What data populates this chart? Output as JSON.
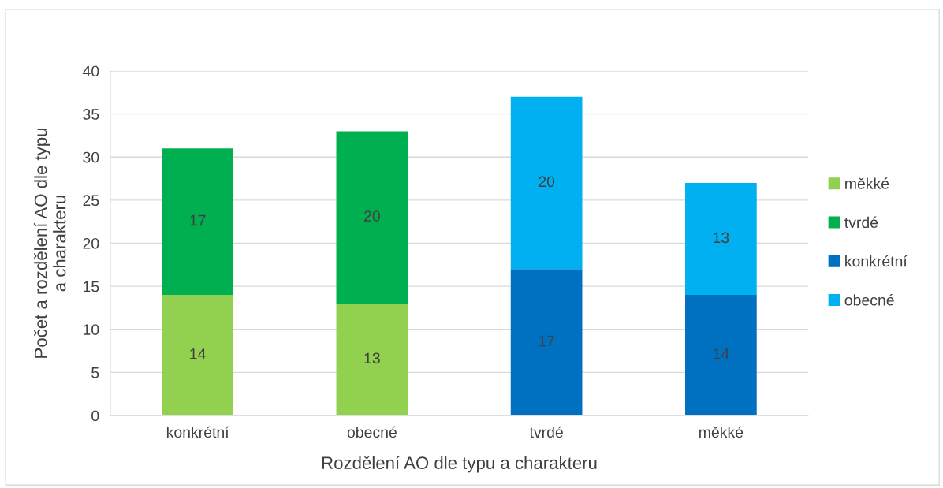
{
  "chart_data": {
    "type": "bar",
    "stacked": true,
    "xlabel": "Rozdělení AO dle typu a charakteru",
    "ylabel": "Počet a rozdělení AO dle typu\na charakteru",
    "categories": [
      "konkrétní",
      "obecné",
      "tvrdé",
      "měkké"
    ],
    "series": [
      {
        "name": "měkké",
        "color": "#92d050",
        "values": [
          14,
          13,
          null,
          null
        ]
      },
      {
        "name": "tvrdé",
        "color": "#00b050",
        "values": [
          17,
          20,
          null,
          null
        ]
      },
      {
        "name": "konkrétní",
        "color": "#0070c0",
        "values": [
          null,
          null,
          17,
          14
        ]
      },
      {
        "name": "obecné",
        "color": "#00b0f0",
        "values": [
          null,
          null,
          20,
          13
        ]
      }
    ],
    "ylim": [
      0,
      40
    ],
    "yticks": [
      0,
      5,
      10,
      15,
      20,
      25,
      30,
      35,
      40
    ],
    "grid": "y",
    "legend": "right",
    "data_labels": true
  }
}
